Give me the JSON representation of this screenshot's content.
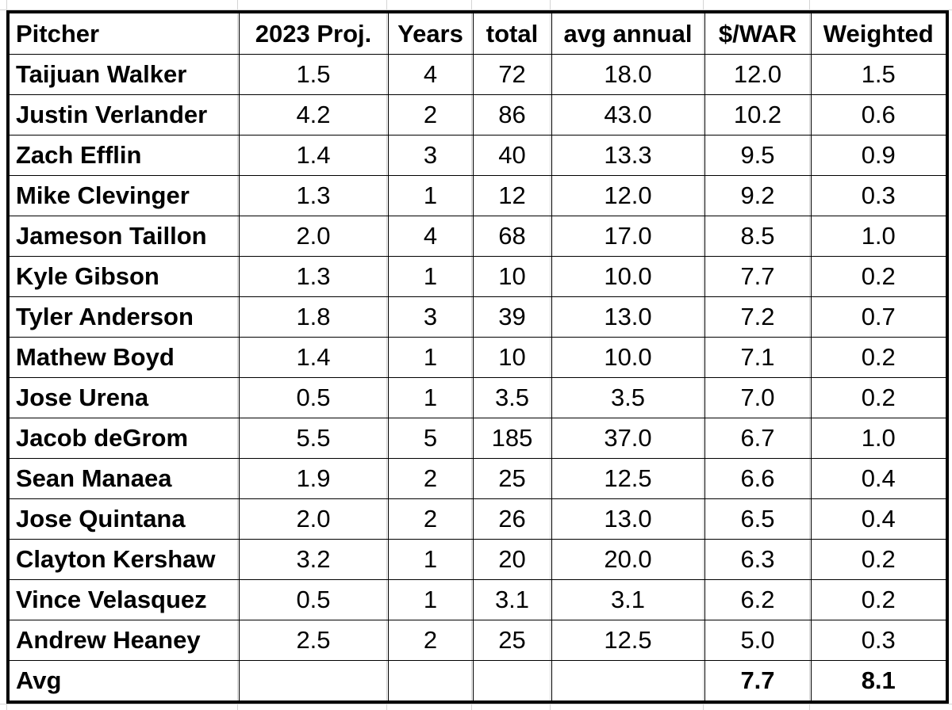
{
  "table": {
    "headers": [
      "Pitcher",
      "2023 Proj.",
      "Years",
      "total",
      "avg annual",
      "$/WAR",
      "Weighted"
    ],
    "rows": [
      [
        "Taijuan Walker",
        "1.5",
        "4",
        "72",
        "18.0",
        "12.0",
        "1.5"
      ],
      [
        "Justin Verlander",
        "4.2",
        "2",
        "86",
        "43.0",
        "10.2",
        "0.6"
      ],
      [
        "Zach Efflin",
        "1.4",
        "3",
        "40",
        "13.3",
        "9.5",
        "0.9"
      ],
      [
        "Mike Clevinger",
        "1.3",
        "1",
        "12",
        "12.0",
        "9.2",
        "0.3"
      ],
      [
        "Jameson Taillon",
        "2.0",
        "4",
        "68",
        "17.0",
        "8.5",
        "1.0"
      ],
      [
        "Kyle Gibson",
        "1.3",
        "1",
        "10",
        "10.0",
        "7.7",
        "0.2"
      ],
      [
        "Tyler Anderson",
        "1.8",
        "3",
        "39",
        "13.0",
        "7.2",
        "0.7"
      ],
      [
        "Mathew Boyd",
        "1.4",
        "1",
        "10",
        "10.0",
        "7.1",
        "0.2"
      ],
      [
        "Jose Urena",
        "0.5",
        "1",
        "3.5",
        "3.5",
        "7.0",
        "0.2"
      ],
      [
        "Jacob deGrom",
        "5.5",
        "5",
        "185",
        "37.0",
        "6.7",
        "1.0"
      ],
      [
        "Sean Manaea",
        "1.9",
        "2",
        "25",
        "12.5",
        "6.6",
        "0.4"
      ],
      [
        "Jose Quintana",
        "2.0",
        "2",
        "26",
        "13.0",
        "6.5",
        "0.4"
      ],
      [
        "Clayton Kershaw",
        "3.2",
        "1",
        "20",
        "20.0",
        "6.3",
        "0.2"
      ],
      [
        "Vince Velasquez",
        "0.5",
        "1",
        "3.1",
        "3.1",
        "6.2",
        "0.2"
      ],
      [
        "Andrew Heaney",
        "2.5",
        "2",
        "25",
        "12.5",
        "5.0",
        "0.3"
      ]
    ],
    "footer": [
      "Avg",
      "",
      "",
      "",
      "",
      "7.7",
      "8.1"
    ]
  }
}
